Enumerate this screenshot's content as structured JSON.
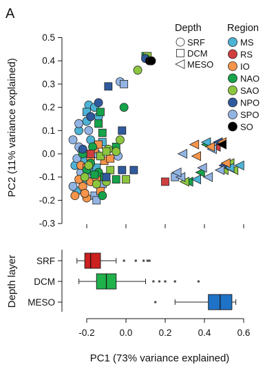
{
  "panel_label": "A",
  "colors": {
    "MS": "#4db3d6",
    "RS": "#cf3f3f",
    "IO": "#f5944a",
    "NAO": "#16a34a",
    "SAO": "#8cc63f",
    "NPO": "#2f5a9e",
    "SPO": "#92b4e3",
    "SO": "#000000",
    "box_SRF": "#cc1f1f",
    "box_DCM": "#1fb14a",
    "box_MESO": "#1f73c7"
  },
  "legend": {
    "depth_title": "Depth",
    "depth_items": [
      {
        "label": "SRF",
        "shape": "circle"
      },
      {
        "label": "DCM",
        "shape": "square"
      },
      {
        "label": "MESO",
        "shape": "triangle-left"
      }
    ],
    "region_title": "Region",
    "region_items": [
      "MS",
      "RS",
      "IO",
      "NAO",
      "SAO",
      "NPO",
      "SPO",
      "SO"
    ]
  },
  "chart_data": [
    {
      "type": "scatter",
      "xlabel": "",
      "ylabel": "PC2 (11% variance explained)",
      "ylim": [
        -0.3,
        0.5
      ],
      "yticks": [
        "-0.3",
        "-0.2",
        "-0.1",
        "0.0",
        "0.1",
        "0.2",
        "0.3",
        "0.4",
        "0.5"
      ],
      "xlim": [
        -0.33,
        0.65
      ],
      "points": [
        {
          "x": -0.26,
          "y": -0.05,
          "r": "MS",
          "s": "c"
        },
        {
          "x": -0.24,
          "y": 0.1,
          "r": "MS",
          "s": "c"
        },
        {
          "x": -0.23,
          "y": 0.02,
          "r": "MS",
          "s": "c"
        },
        {
          "x": -0.21,
          "y": -0.03,
          "r": "MS",
          "s": "c"
        },
        {
          "x": -0.19,
          "y": 0.21,
          "r": "MS",
          "s": "c"
        },
        {
          "x": -0.2,
          "y": 0.14,
          "r": "MS",
          "s": "c"
        },
        {
          "x": -0.16,
          "y": 0.2,
          "r": "MS",
          "s": "c"
        },
        {
          "x": -0.18,
          "y": 0.06,
          "r": "MS",
          "s": "c"
        },
        {
          "x": -0.14,
          "y": 0.16,
          "r": "MS",
          "s": "c"
        },
        {
          "x": -0.22,
          "y": -0.12,
          "r": "MS",
          "s": "c"
        },
        {
          "x": -0.25,
          "y": -0.16,
          "r": "MS",
          "s": "c"
        },
        {
          "x": -0.17,
          "y": -0.08,
          "r": "MS",
          "s": "c"
        },
        {
          "x": -0.2,
          "y": 0.18,
          "r": "MS",
          "s": "s"
        },
        {
          "x": -0.12,
          "y": 0.05,
          "r": "MS",
          "s": "s"
        },
        {
          "x": -0.15,
          "y": -0.06,
          "r": "MS",
          "s": "s"
        },
        {
          "x": -0.24,
          "y": 0.13,
          "r": "SPO",
          "s": "c"
        },
        {
          "x": -0.27,
          "y": 0.06,
          "r": "SPO",
          "s": "c"
        },
        {
          "x": -0.25,
          "y": -0.02,
          "r": "SPO",
          "s": "c"
        },
        {
          "x": -0.23,
          "y": -0.08,
          "r": "SPO",
          "s": "c"
        },
        {
          "x": -0.27,
          "y": -0.14,
          "r": "SPO",
          "s": "c"
        },
        {
          "x": -0.21,
          "y": -0.17,
          "r": "SPO",
          "s": "c"
        },
        {
          "x": -0.19,
          "y": 0.1,
          "r": "SPO",
          "s": "c"
        },
        {
          "x": -0.15,
          "y": 0.0,
          "r": "SPO",
          "s": "c"
        },
        {
          "x": -0.24,
          "y": 0.03,
          "r": "SPO",
          "s": "c"
        },
        {
          "x": -0.2,
          "y": -0.1,
          "r": "SPO",
          "s": "c"
        },
        {
          "x": -0.03,
          "y": 0.31,
          "r": "SPO",
          "s": "c"
        },
        {
          "x": -0.04,
          "y": -0.01,
          "r": "SPO",
          "s": "c"
        },
        {
          "x": -0.01,
          "y": 0.3,
          "r": "SPO",
          "s": "s"
        },
        {
          "x": -0.16,
          "y": -0.18,
          "r": "SPO",
          "s": "s"
        },
        {
          "x": -0.12,
          "y": -0.13,
          "r": "SPO",
          "s": "s"
        },
        {
          "x": -0.15,
          "y": -0.2,
          "r": "SPO",
          "s": "s"
        },
        {
          "x": -0.22,
          "y": -0.14,
          "r": "IO",
          "s": "c"
        },
        {
          "x": -0.2,
          "y": -0.19,
          "r": "IO",
          "s": "c"
        },
        {
          "x": -0.23,
          "y": -0.05,
          "r": "IO",
          "s": "c"
        },
        {
          "x": -0.21,
          "y": -0.17,
          "r": "IO",
          "s": "c"
        },
        {
          "x": -0.26,
          "y": -0.18,
          "r": "IO",
          "s": "c"
        },
        {
          "x": -0.18,
          "y": -0.02,
          "r": "IO",
          "s": "c"
        },
        {
          "x": -0.18,
          "y": -0.12,
          "r": "IO",
          "s": "c"
        },
        {
          "x": -0.24,
          "y": -0.11,
          "r": "IO",
          "s": "c"
        },
        {
          "x": -0.15,
          "y": -0.1,
          "r": "IO",
          "s": "s"
        },
        {
          "x": -0.13,
          "y": -0.16,
          "r": "IO",
          "s": "s"
        },
        {
          "x": -0.11,
          "y": -0.03,
          "r": "IO",
          "s": "s"
        },
        {
          "x": -0.2,
          "y": -0.06,
          "r": "IO",
          "s": "s"
        },
        {
          "x": -0.16,
          "y": 0.02,
          "r": "IO",
          "s": "s"
        },
        {
          "x": -0.14,
          "y": 0.04,
          "r": "IO",
          "s": "s"
        },
        {
          "x": -0.08,
          "y": -0.02,
          "r": "IO",
          "s": "s"
        },
        {
          "x": -0.22,
          "y": 0.0,
          "r": "NAO",
          "s": "c"
        },
        {
          "x": -0.18,
          "y": -0.04,
          "r": "NAO",
          "s": "c"
        },
        {
          "x": -0.14,
          "y": -0.08,
          "r": "NAO",
          "s": "c"
        },
        {
          "x": -0.2,
          "y": -0.07,
          "r": "NAO",
          "s": "c"
        },
        {
          "x": -0.01,
          "y": 0.2,
          "r": "NAO",
          "s": "c"
        },
        {
          "x": -0.12,
          "y": -0.18,
          "r": "NAO",
          "s": "c"
        },
        {
          "x": -0.17,
          "y": 0.03,
          "r": "NAO",
          "s": "c"
        },
        {
          "x": -0.13,
          "y": 0.18,
          "r": "NAO",
          "s": "s"
        },
        {
          "x": -0.12,
          "y": 0.09,
          "r": "NAO",
          "s": "s"
        },
        {
          "x": -0.11,
          "y": -0.1,
          "r": "NAO",
          "s": "s"
        },
        {
          "x": -0.16,
          "y": -0.09,
          "r": "NAO",
          "s": "s"
        },
        {
          "x": -0.14,
          "y": 0.13,
          "r": "NAO",
          "s": "s"
        },
        {
          "x": -0.05,
          "y": -0.11,
          "r": "NAO",
          "s": "s"
        },
        {
          "x": -0.05,
          "y": 0.03,
          "r": "NAO",
          "s": "s"
        },
        {
          "x": 0.32,
          "y": -0.12,
          "r": "NAO",
          "s": "t"
        },
        {
          "x": 0.38,
          "y": -0.08,
          "r": "NAO",
          "s": "t"
        },
        {
          "x": 0.5,
          "y": -0.05,
          "r": "NAO",
          "s": "t"
        },
        {
          "x": 0.41,
          "y": 0.04,
          "r": "NAO",
          "s": "t"
        },
        {
          "x": 0.1,
          "y": 0.42,
          "r": "NAO",
          "s": "s"
        },
        {
          "x": -0.19,
          "y": -0.05,
          "r": "SAO",
          "s": "c"
        },
        {
          "x": -0.15,
          "y": -0.13,
          "r": "SAO",
          "s": "c"
        },
        {
          "x": -0.1,
          "y": -0.12,
          "r": "SAO",
          "s": "c"
        },
        {
          "x": -0.05,
          "y": 0.01,
          "r": "SAO",
          "s": "c"
        },
        {
          "x": -0.09,
          "y": 0.02,
          "r": "SAO",
          "s": "c"
        },
        {
          "x": -0.03,
          "y": 0.06,
          "r": "SAO",
          "s": "c"
        },
        {
          "x": -0.21,
          "y": -0.1,
          "r": "SAO",
          "s": "c"
        },
        {
          "x": 0.06,
          "y": 0.36,
          "r": "SAO",
          "s": "c"
        },
        {
          "x": -0.08,
          "y": -0.07,
          "r": "SAO",
          "s": "s"
        },
        {
          "x": 0.0,
          "y": -0.11,
          "r": "SAO",
          "s": "s"
        },
        {
          "x": -0.13,
          "y": -0.01,
          "r": "SAO",
          "s": "s"
        },
        {
          "x": -0.1,
          "y": 0.01,
          "r": "SAO",
          "s": "s"
        },
        {
          "x": 0.11,
          "y": 0.42,
          "r": "SAO",
          "s": "s"
        },
        {
          "x": 0.3,
          "y": -0.12,
          "r": "SAO",
          "s": "t"
        },
        {
          "x": 0.5,
          "y": -0.07,
          "r": "SAO",
          "s": "t"
        },
        {
          "x": 0.53,
          "y": -0.04,
          "r": "SAO",
          "s": "t"
        },
        {
          "x": 0.55,
          "y": -0.07,
          "r": "SAO",
          "s": "t"
        },
        {
          "x": -0.18,
          "y": 0.0,
          "r": "RS",
          "s": "s"
        },
        {
          "x": 0.2,
          "y": -0.12,
          "r": "RS",
          "s": "s"
        },
        {
          "x": 0.46,
          "y": 0.03,
          "r": "RS",
          "s": "t"
        },
        {
          "x": 0.1,
          "y": 0.41,
          "r": "NPO",
          "s": "c"
        },
        {
          "x": -0.18,
          "y": 0.16,
          "r": "NPO",
          "s": "c"
        },
        {
          "x": -0.22,
          "y": 0.02,
          "r": "NPO",
          "s": "c"
        },
        {
          "x": -0.14,
          "y": 0.22,
          "r": "NPO",
          "s": "c"
        },
        {
          "x": -0.09,
          "y": 0.29,
          "r": "NPO",
          "s": "s"
        },
        {
          "x": -0.02,
          "y": 0.1,
          "r": "NPO",
          "s": "s"
        },
        {
          "x": -0.02,
          "y": -0.07,
          "r": "NPO",
          "s": "s"
        },
        {
          "x": 0.04,
          "y": -0.07,
          "r": "NPO",
          "s": "s"
        },
        {
          "x": -0.1,
          "y": -0.1,
          "r": "NPO",
          "s": "s"
        },
        {
          "x": 0.47,
          "y": 0.05,
          "r": "NPO",
          "s": "t"
        },
        {
          "x": 0.5,
          "y": -0.05,
          "r": "NPO",
          "s": "t"
        },
        {
          "x": 0.25,
          "y": -0.1,
          "r": "SPO",
          "s": "s"
        },
        {
          "x": 0.28,
          "y": -0.1,
          "r": "SPO",
          "s": "t"
        },
        {
          "x": 0.26,
          "y": -0.08,
          "r": "SPO",
          "s": "t"
        },
        {
          "x": 0.29,
          "y": 0.0,
          "r": "SPO",
          "s": "t"
        },
        {
          "x": 0.42,
          "y": -0.1,
          "r": "SPO",
          "s": "t"
        },
        {
          "x": 0.39,
          "y": -0.06,
          "r": "SPO",
          "s": "t"
        },
        {
          "x": 0.48,
          "y": -0.07,
          "r": "SPO",
          "s": "t"
        },
        {
          "x": 0.44,
          "y": 0.02,
          "r": "SPO",
          "s": "t"
        },
        {
          "x": 0.36,
          "y": -0.11,
          "r": "MS",
          "s": "t"
        },
        {
          "x": 0.41,
          "y": 0.05,
          "r": "MS",
          "s": "t"
        },
        {
          "x": 0.53,
          "y": -0.06,
          "r": "MS",
          "s": "t"
        },
        {
          "x": 0.58,
          "y": -0.05,
          "r": "MS",
          "s": "t"
        },
        {
          "x": 0.35,
          "y": 0.04,
          "r": "IO",
          "s": "t"
        },
        {
          "x": 0.36,
          "y": -0.01,
          "r": "IO",
          "s": "t"
        },
        {
          "x": 0.43,
          "y": 0.03,
          "r": "IO",
          "s": "t"
        },
        {
          "x": 0.49,
          "y": 0.05,
          "r": "IO",
          "s": "t"
        },
        {
          "x": 0.51,
          "y": -0.04,
          "r": "IO",
          "s": "t"
        },
        {
          "x": 0.12,
          "y": 0.4,
          "r": "SO",
          "s": "c"
        },
        {
          "x": 0.13,
          "y": 0.4,
          "r": "SO",
          "s": "c"
        },
        {
          "x": 0.49,
          "y": 0.04,
          "r": "SO",
          "s": "t"
        }
      ]
    },
    {
      "type": "box",
      "xlabel": "PC1 (73% variance explained)",
      "ylabel": "Depth layer",
      "xlim": [
        -0.33,
        0.65
      ],
      "xticks": [
        "-0.2",
        "0.0",
        "0.2",
        "0.4",
        "0.6"
      ],
      "categories": [
        "SRF",
        "DCM",
        "MESO"
      ],
      "boxes": [
        {
          "label": "SRF",
          "whisker_low": -0.25,
          "q1": -0.21,
          "median": -0.18,
          "q3": -0.13,
          "whisker_high": -0.05,
          "outliers": [
            -0.01,
            0.05,
            0.09,
            0.11,
            0.12
          ],
          "color_key": "box_SRF"
        },
        {
          "label": "DCM",
          "whisker_low": -0.24,
          "q1": -0.15,
          "median": -0.1,
          "q3": -0.05,
          "whisker_high": 0.1,
          "outliers": [
            0.14,
            0.17,
            0.2,
            0.25,
            0.37
          ],
          "color_key": "box_DCM"
        },
        {
          "label": "MESO",
          "whisker_low": 0.25,
          "q1": 0.42,
          "median": 0.48,
          "q3": 0.54,
          "whisker_high": 0.56,
          "outliers": [
            0.15
          ],
          "color_key": "box_MESO"
        }
      ]
    }
  ]
}
